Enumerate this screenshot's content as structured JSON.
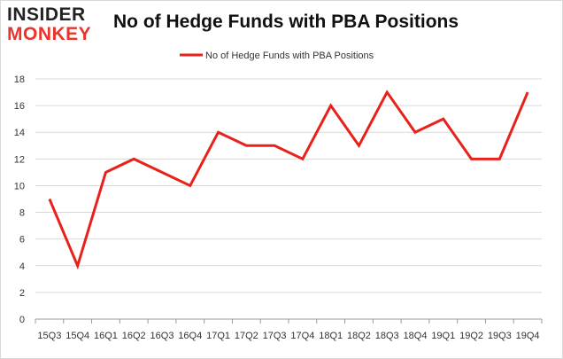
{
  "logo": {
    "line1": "INSIDER",
    "line2": "MONKEY"
  },
  "title": "No of Hedge Funds with PBA Positions",
  "colors": {
    "series": "#e8211b",
    "grid": "#d9d9d9",
    "axis": "#999999"
  },
  "chart_data": {
    "type": "line",
    "title": "No of Hedge Funds with PBA Positions",
    "xlabel": "",
    "ylabel": "",
    "categories": [
      "15Q3",
      "15Q4",
      "16Q1",
      "16Q2",
      "16Q3",
      "16Q4",
      "17Q1",
      "17Q2",
      "17Q3",
      "17Q4",
      "18Q1",
      "18Q2",
      "18Q3",
      "18Q4",
      "19Q1",
      "19Q2",
      "19Q3",
      "19Q4"
    ],
    "series": [
      {
        "name": "No of Hedge Funds with PBA Positions",
        "values": [
          9,
          4,
          11,
          12,
          11,
          10,
          14,
          13,
          13,
          12,
          16,
          13,
          17,
          14,
          15,
          12,
          12,
          17
        ]
      }
    ],
    "ylim": [
      0,
      18
    ],
    "yticks": [
      0,
      2,
      4,
      6,
      8,
      10,
      12,
      14,
      16,
      18
    ],
    "grid": true,
    "legend": "top-center"
  }
}
